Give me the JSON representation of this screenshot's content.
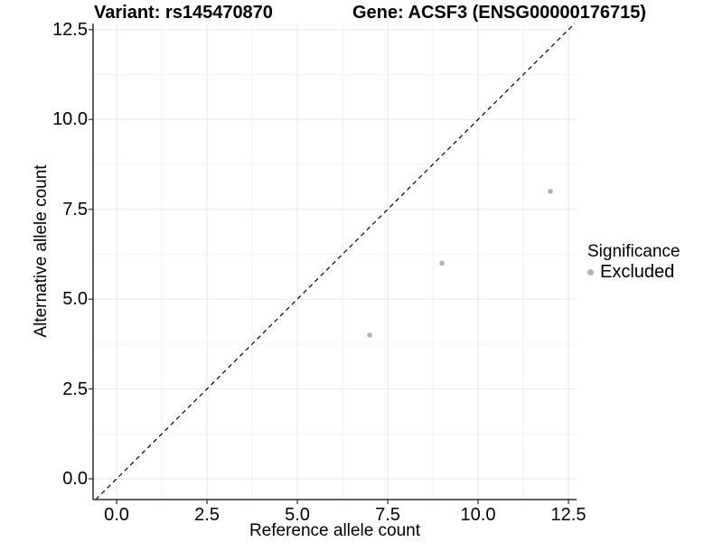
{
  "titles": {
    "left": "Variant: rs145470870",
    "right": "Gene: ACSF3 (ENSG00000176715)"
  },
  "legend": {
    "title": "Significance",
    "items": [
      {
        "label": "Excluded",
        "color": "#b3b3b3"
      }
    ],
    "position": "right"
  },
  "chart_data": {
    "type": "scatter",
    "title": "Variant: rs145470870 / Gene: ACSF3 (ENSG00000176715)",
    "xlabel": "Reference allele count",
    "ylabel": "Alternative allele count",
    "xlim": [
      -0.65,
      12.725
    ],
    "ylim": [
      -0.578,
      12.672
    ],
    "x_ticks": {
      "values": [
        0,
        2.5,
        5,
        7.5,
        10,
        12.5
      ],
      "labels": [
        "0.0",
        "2.5",
        "5.0",
        "7.5",
        "10.0",
        "12.5"
      ]
    },
    "y_ticks": {
      "values": [
        0,
        2.5,
        5,
        7.5,
        10,
        12.5
      ],
      "labels": [
        "0.0",
        "2.5",
        "5.0",
        "7.5",
        "10.0",
        "12.5"
      ]
    },
    "minor_grid": [
      1.25,
      3.75,
      6.25,
      8.75,
      11.25
    ],
    "grid": true,
    "legend_position": "right",
    "series": [
      {
        "name": "Excluded",
        "color": "#b3b3b3",
        "point_radius": 2.8,
        "points": [
          {
            "x": 7,
            "y": 4
          },
          {
            "x": 9,
            "y": 6
          },
          {
            "x": 12,
            "y": 8
          }
        ]
      }
    ],
    "reference_line": {
      "slope": 1,
      "intercept": 0,
      "style": "dashed",
      "color": "#000000"
    },
    "colors": {
      "background": "#ffffff",
      "grid_major": "#e6e6e6",
      "grid_minor": "#f2f2f2",
      "axis": "#2b2b2b",
      "text": "#000000"
    }
  }
}
